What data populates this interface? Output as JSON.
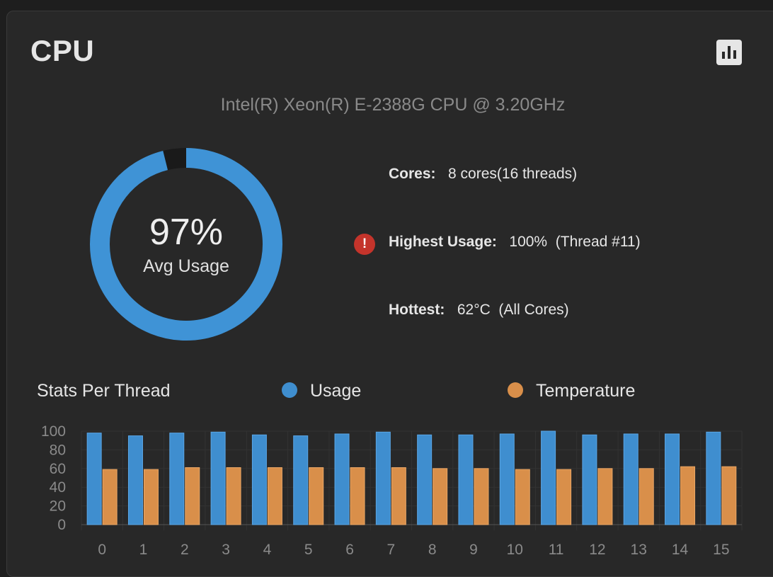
{
  "card": {
    "title": "CPU",
    "chart_icon": "bar-chart-icon",
    "model": "Intel(R) Xeon(R) E-2388G CPU @ 3.20GHz"
  },
  "gauge": {
    "percent": 97,
    "value_text": "97%",
    "label": "Avg Usage",
    "color": "#3f93d6",
    "track_color": "#1a1a1a"
  },
  "stats": {
    "cores_label": "Cores:",
    "cores_value": "8 cores(16 threads)",
    "highest_label": "Highest Usage:",
    "highest_value": "100%  (Thread #11)",
    "hottest_label": "Hottest:",
    "hottest_value": "62°C  (All Cores)",
    "alert_icon": "exclamation-icon",
    "alert_symbol": "!",
    "alert_color": "#c4342b"
  },
  "per_thread": {
    "title": "Stats Per Thread",
    "legend": [
      {
        "label": "Usage",
        "color": "#3f8ecf"
      },
      {
        "label": "Temperature",
        "color": "#d98f4a"
      }
    ]
  },
  "chart_data": {
    "type": "bar",
    "categories": [
      "0",
      "1",
      "2",
      "3",
      "4",
      "5",
      "6",
      "7",
      "8",
      "9",
      "10",
      "11",
      "12",
      "13",
      "14",
      "15"
    ],
    "series": [
      {
        "name": "Usage",
        "color": "#3f8ecf",
        "values": [
          98,
          95,
          98,
          99,
          96,
          95,
          97,
          99,
          96,
          96,
          97,
          100,
          96,
          97,
          97,
          99
        ]
      },
      {
        "name": "Temperature",
        "color": "#d98f4a",
        "values": [
          59,
          59,
          61,
          61,
          61,
          61,
          61,
          61,
          60,
          60,
          59,
          59,
          60,
          60,
          62,
          62
        ]
      }
    ],
    "yticks": [
      0,
      20,
      40,
      60,
      80,
      100
    ],
    "ylim": [
      0,
      100
    ],
    "grid": true,
    "title": "",
    "xlabel": "",
    "ylabel": ""
  }
}
